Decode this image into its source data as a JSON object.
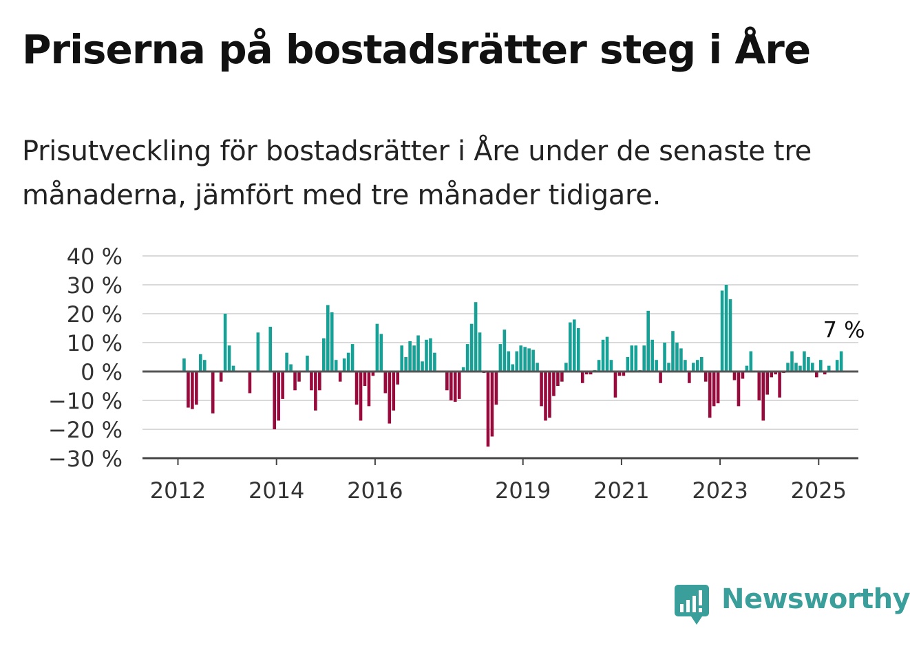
{
  "header": {
    "title": "Priserna på bostadsrätter steg i Åre",
    "subtitle": "Prisutveckling för bostadsrätter i Åre under de senaste tre månaderna, jämfört med tre månader tidigare."
  },
  "brand": {
    "name": "Newsworthy",
    "color": "#3a9e9a"
  },
  "chart_data": {
    "type": "bar",
    "unit": "%",
    "y_ticks": [
      "40 %",
      "30 %",
      "20 %",
      "10 %",
      "0 %",
      "−10 %",
      "−20 %",
      "−30 %"
    ],
    "ylim": [
      -30,
      40
    ],
    "x_ticks": [
      "2012",
      "2014",
      "2016",
      "2019",
      "2021",
      "2023",
      "2025"
    ],
    "x_tick_years": [
      2012,
      2014,
      2016,
      2019,
      2021,
      2023,
      2025
    ],
    "series_start": {
      "year": 2012,
      "month": 1
    },
    "positive_color": "#16a096",
    "negative_color": "#990a3c",
    "grid": true,
    "annotation": {
      "text": "7 %",
      "value": 7
    },
    "values": [
      0,
      4.5,
      -12.5,
      -13,
      -11.5,
      6,
      4,
      0,
      -14.5,
      0,
      -3.5,
      20,
      9,
      2,
      0,
      0,
      0,
      -7.5,
      0,
      13.5,
      0,
      0,
      15.5,
      -20,
      -17,
      -9.5,
      6.5,
      2.5,
      -6.5,
      -3.5,
      0,
      5.5,
      -6.5,
      -13.5,
      -6.5,
      11.5,
      23,
      20.5,
      4,
      -3.5,
      4.5,
      6.5,
      9.5,
      -11.5,
      -17,
      -5,
      -12,
      -1.5,
      16.5,
      13,
      -7.5,
      -18,
      -13.5,
      -4.5,
      9,
      5,
      10.5,
      9,
      12.5,
      3.5,
      11,
      11.5,
      6.5,
      0,
      0,
      -6.5,
      -10,
      -10.5,
      -9.5,
      1.5,
      9.5,
      16.5,
      24,
      13.5,
      -0.5,
      -26,
      -22.5,
      -11.5,
      9.5,
      14.5,
      7,
      2.5,
      7,
      9,
      8.5,
      8,
      7.5,
      3,
      -12,
      -17,
      -16,
      -8.5,
      -5,
      -3.5,
      3,
      17,
      18,
      15,
      -4,
      -1,
      -1,
      0.5,
      4,
      11,
      12,
      4,
      -9,
      -1.5,
      -1.5,
      5,
      9,
      9,
      0.5,
      9,
      21,
      11,
      4,
      -4,
      10,
      3,
      14,
      10,
      8,
      4,
      -4,
      3,
      4,
      5,
      -3.5,
      -16,
      -12,
      -11,
      28,
      30,
      25,
      -3,
      -12,
      -2.5,
      2,
      7,
      0,
      -10,
      -17,
      -8,
      -2,
      -1,
      -9,
      -0.5,
      3,
      7,
      3,
      2,
      7,
      5,
      3,
      -2,
      4,
      -1,
      2,
      0,
      4,
      7
    ]
  }
}
